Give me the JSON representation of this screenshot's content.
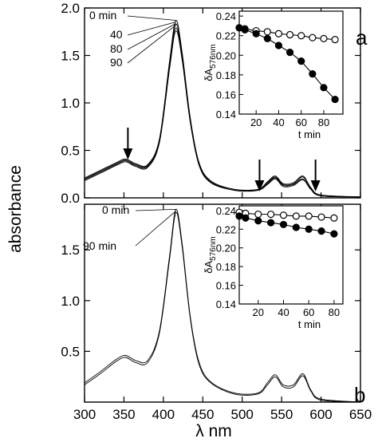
{
  "figure": {
    "ylabel": "absorbance",
    "xlabel": "λ  nm",
    "xlim": [
      300,
      650
    ],
    "x_ticks": [
      "300",
      "350",
      "400",
      "450",
      "500",
      "550",
      "600",
      "650"
    ],
    "colors": {
      "ink": "#000000",
      "open_marker": "#ffffff"
    }
  },
  "chart_data": [
    {
      "type": "line",
      "panel": "a",
      "panel_label": "a",
      "ylim": [
        0,
        2.0
      ],
      "y_ticks": [
        "0.0",
        "0.5",
        "1.0",
        "1.5",
        "2.0"
      ],
      "time_labels": [
        "0 min",
        "40",
        "80",
        "90"
      ],
      "series": [
        {
          "name": "0 min",
          "points": [
            [
              300,
              0.21
            ],
            [
              320,
              0.29
            ],
            [
              340,
              0.37
            ],
            [
              352,
              0.41
            ],
            [
              365,
              0.36
            ],
            [
              380,
              0.35
            ],
            [
              395,
              0.62
            ],
            [
              408,
              1.45
            ],
            [
              416,
              1.87
            ],
            [
              424,
              1.52
            ],
            [
              434,
              0.85
            ],
            [
              445,
              0.38
            ],
            [
              460,
              0.18
            ],
            [
              490,
              0.09
            ],
            [
              520,
              0.09
            ],
            [
              532,
              0.17
            ],
            [
              542,
              0.23
            ],
            [
              552,
              0.15
            ],
            [
              565,
              0.16
            ],
            [
              577,
              0.23
            ],
            [
              587,
              0.11
            ],
            [
              600,
              0.03
            ],
            [
              650,
              0.01
            ]
          ]
        },
        {
          "name": "40",
          "points": [
            [
              300,
              0.2
            ],
            [
              320,
              0.28
            ],
            [
              340,
              0.36
            ],
            [
              352,
              0.4
            ],
            [
              365,
              0.35
            ],
            [
              380,
              0.34
            ],
            [
              395,
              0.6
            ],
            [
              408,
              1.42
            ],
            [
              416,
              1.83
            ],
            [
              424,
              1.49
            ],
            [
              434,
              0.83
            ],
            [
              445,
              0.37
            ],
            [
              460,
              0.17
            ],
            [
              490,
              0.09
            ],
            [
              520,
              0.09
            ],
            [
              532,
              0.16
            ],
            [
              542,
              0.22
            ],
            [
              552,
              0.14
            ],
            [
              565,
              0.15
            ],
            [
              577,
              0.22
            ],
            [
              587,
              0.1
            ],
            [
              600,
              0.03
            ],
            [
              650,
              0.01
            ]
          ]
        },
        {
          "name": "80",
          "points": [
            [
              300,
              0.19
            ],
            [
              320,
              0.27
            ],
            [
              340,
              0.35
            ],
            [
              352,
              0.39
            ],
            [
              365,
              0.34
            ],
            [
              380,
              0.33
            ],
            [
              395,
              0.59
            ],
            [
              408,
              1.39
            ],
            [
              416,
              1.79
            ],
            [
              424,
              1.46
            ],
            [
              434,
              0.81
            ],
            [
              445,
              0.36
            ],
            [
              460,
              0.17
            ],
            [
              490,
              0.08
            ],
            [
              520,
              0.08
            ],
            [
              532,
              0.15
            ],
            [
              542,
              0.21
            ],
            [
              552,
              0.13
            ],
            [
              565,
              0.14
            ],
            [
              577,
              0.2
            ],
            [
              587,
              0.09
            ],
            [
              600,
              0.02
            ],
            [
              650,
              0.01
            ]
          ]
        },
        {
          "name": "90",
          "points": [
            [
              300,
              0.18
            ],
            [
              320,
              0.26
            ],
            [
              340,
              0.34
            ],
            [
              352,
              0.38
            ],
            [
              365,
              0.33
            ],
            [
              380,
              0.32
            ],
            [
              395,
              0.58
            ],
            [
              408,
              1.37
            ],
            [
              416,
              1.76
            ],
            [
              424,
              1.44
            ],
            [
              434,
              0.8
            ],
            [
              445,
              0.35
            ],
            [
              460,
              0.16
            ],
            [
              490,
              0.08
            ],
            [
              520,
              0.08
            ],
            [
              532,
              0.14
            ],
            [
              542,
              0.2
            ],
            [
              552,
              0.12
            ],
            [
              565,
              0.13
            ],
            [
              577,
              0.19
            ],
            [
              587,
              0.09
            ],
            [
              600,
              0.02
            ],
            [
              650,
              0.01
            ]
          ]
        }
      ],
      "arrows_at_nm": [
        355,
        522,
        593
      ],
      "inset": {
        "type": "scatter",
        "ylabel": "δA576nm",
        "ylabel_main": "δA",
        "ylabel_sub": "576nm",
        "xlabel": "t  min",
        "xlim": [
          5,
          97
        ],
        "ylim": [
          0.14,
          0.245
        ],
        "x_ticks": [
          "20",
          "40",
          "60",
          "80"
        ],
        "y_ticks": [
          "0.14",
          "0.16",
          "0.18",
          "0.20",
          "0.22",
          "0.24"
        ],
        "series": [
          {
            "marker": "open",
            "x": [
              5,
              10,
              20,
              30,
              40,
              50,
              60,
              70,
              80,
              90
            ],
            "y": [
              0.228,
              0.227,
              0.225,
              0.224,
              0.222,
              0.221,
              0.22,
              0.218,
              0.217,
              0.216
            ]
          },
          {
            "marker": "filled",
            "x": [
              5,
              10,
              20,
              30,
              40,
              50,
              60,
              70,
              80,
              90
            ],
            "y": [
              0.228,
              0.226,
              0.222,
              0.217,
              0.21,
              0.203,
              0.194,
              0.181,
              0.167,
              0.155
            ]
          }
        ]
      }
    },
    {
      "type": "line",
      "panel": "b",
      "panel_label": "b",
      "ylim": [
        0,
        1.95
      ],
      "y_ticks": [
        "0.5",
        "1.0",
        "1.5"
      ],
      "time_labels": [
        "0 min",
        "90 min"
      ],
      "series": [
        {
          "name": "0 min",
          "points": [
            [
              300,
              0.19
            ],
            [
              320,
              0.3
            ],
            [
              340,
              0.42
            ],
            [
              352,
              0.46
            ],
            [
              365,
              0.41
            ],
            [
              380,
              0.41
            ],
            [
              395,
              0.7
            ],
            [
              408,
              1.45
            ],
            [
              416,
              1.9
            ],
            [
              424,
              1.55
            ],
            [
              434,
              0.85
            ],
            [
              445,
              0.4
            ],
            [
              460,
              0.2
            ],
            [
              490,
              0.09
            ],
            [
              520,
              0.09
            ],
            [
              532,
              0.19
            ],
            [
              542,
              0.27
            ],
            [
              552,
              0.17
            ],
            [
              565,
              0.17
            ],
            [
              577,
              0.28
            ],
            [
              587,
              0.12
            ],
            [
              600,
              0.03
            ],
            [
              650,
              0.0
            ]
          ]
        },
        {
          "name": "90 min",
          "points": [
            [
              300,
              0.17
            ],
            [
              320,
              0.28
            ],
            [
              340,
              0.4
            ],
            [
              352,
              0.44
            ],
            [
              365,
              0.39
            ],
            [
              380,
              0.39
            ],
            [
              395,
              0.68
            ],
            [
              408,
              1.42
            ],
            [
              416,
              1.87
            ],
            [
              424,
              1.52
            ],
            [
              434,
              0.83
            ],
            [
              445,
              0.38
            ],
            [
              460,
              0.19
            ],
            [
              490,
              0.08
            ],
            [
              520,
              0.08
            ],
            [
              532,
              0.17
            ],
            [
              542,
              0.25
            ],
            [
              552,
              0.15
            ],
            [
              565,
              0.15
            ],
            [
              577,
              0.26
            ],
            [
              587,
              0.11
            ],
            [
              600,
              0.02
            ],
            [
              650,
              0.0
            ]
          ]
        }
      ],
      "inset": {
        "type": "scatter",
        "ylabel": "δA576nm",
        "ylabel_main": "δA",
        "ylabel_sub": "576nm",
        "xlabel": "t  min",
        "xlim": [
          5,
          87
        ],
        "ylim": [
          0.14,
          0.245
        ],
        "x_ticks": [
          "20",
          "40",
          "60",
          "80"
        ],
        "y_ticks": [
          "0.14",
          "0.16",
          "0.18",
          "0.20",
          "0.22",
          "0.24"
        ],
        "series": [
          {
            "marker": "open",
            "x": [
              5,
              10,
              20,
              30,
              40,
              50,
              60,
              70,
              80
            ],
            "y": [
              0.238,
              0.237,
              0.236,
              0.236,
              0.235,
              0.234,
              0.234,
              0.233,
              0.232
            ]
          },
          {
            "marker": "filled",
            "x": [
              5,
              10,
              20,
              30,
              40,
              50,
              60,
              70,
              80
            ],
            "y": [
              0.234,
              0.232,
              0.229,
              0.227,
              0.225,
              0.222,
              0.22,
              0.218,
              0.215
            ]
          }
        ]
      }
    }
  ]
}
